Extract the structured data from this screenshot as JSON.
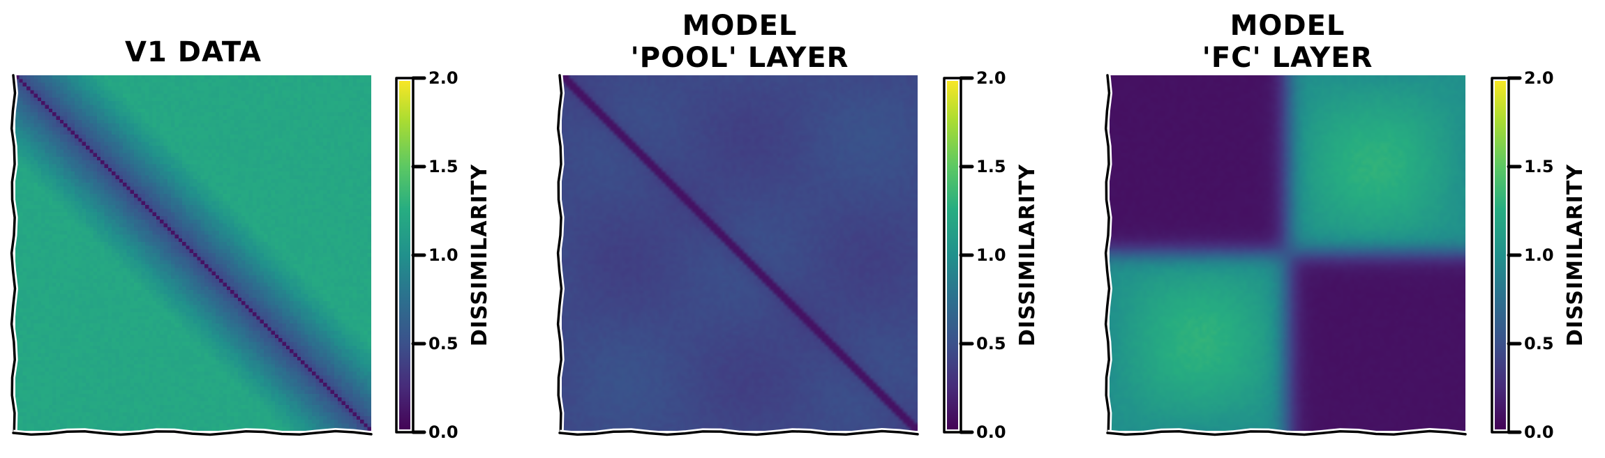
{
  "chart_data": [
    {
      "type": "heatmap",
      "title_lines": [
        "V1 DATA"
      ],
      "pattern": "diagonal-gradient",
      "colorbar": {
        "label": "DISSIMILARITY",
        "ticks": [
          "0.0",
          "0.5",
          "1.0",
          "1.5",
          "2.0"
        ],
        "range": [
          0,
          2
        ]
      },
      "colormap": "viridis",
      "value_estimates": {
        "diagonal": 0.1,
        "near_diagonal": 0.4,
        "far": 1.2
      }
    },
    {
      "type": "heatmap",
      "title_lines": [
        "MODEL",
        "'POOL' LAYER"
      ],
      "pattern": "diagonal-low-uniform",
      "colorbar": {
        "label": "DISSIMILARITY",
        "ticks": [
          "0.0",
          "0.5",
          "1.0",
          "1.5",
          "2.0"
        ],
        "range": [
          0,
          2
        ]
      },
      "colormap": "viridis",
      "value_estimates": {
        "diagonal": 0.1,
        "background": 0.45
      }
    },
    {
      "type": "heatmap",
      "title_lines": [
        "MODEL",
        "'FC' LAYER"
      ],
      "pattern": "two-block",
      "colorbar": {
        "label": "DISSIMILARITY",
        "ticks": [
          "0.0",
          "0.5",
          "1.0",
          "1.5",
          "2.0"
        ],
        "range": [
          0,
          2
        ]
      },
      "colormap": "viridis",
      "value_estimates": {
        "within_block": 0.1,
        "between_blocks_edge": 1.0,
        "between_blocks_center": 1.3
      }
    }
  ]
}
